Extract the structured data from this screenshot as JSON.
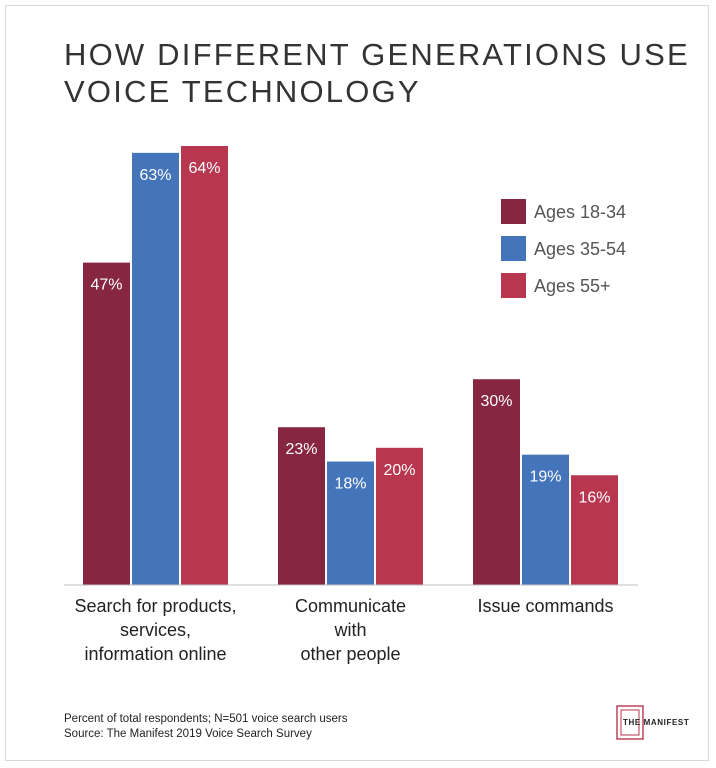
{
  "chart_data": {
    "type": "bar",
    "title_lines": [
      "HOW DIFFERENT GENERATIONS USE",
      "VOICE TECHNOLOGY"
    ],
    "categories": [
      [
        "Search for products,",
        "services,",
        "information online"
      ],
      [
        "Communicate",
        "with",
        "other people"
      ],
      [
        "Issue commands"
      ]
    ],
    "series": [
      {
        "name": "Ages 18-34",
        "color": "#862640",
        "values": [
          47,
          23,
          30
        ]
      },
      {
        "name": "Ages 35-54",
        "color": "#4474BA",
        "values": [
          63,
          18,
          19
        ]
      },
      {
        "name": "Ages 55+",
        "color": "#B8364F",
        "values": [
          64,
          20,
          16
        ]
      }
    ],
    "value_suffix": "%",
    "ylim": [
      0,
      64
    ],
    "grid": false,
    "legend_position": "top-right",
    "footnotes": [
      "Percent of total respondents; N=501 voice search users",
      "Source: The Manifest 2019 Voice Search Survey"
    ]
  },
  "logo": {
    "text": "THE MANIFEST",
    "color": "#B8364F"
  }
}
